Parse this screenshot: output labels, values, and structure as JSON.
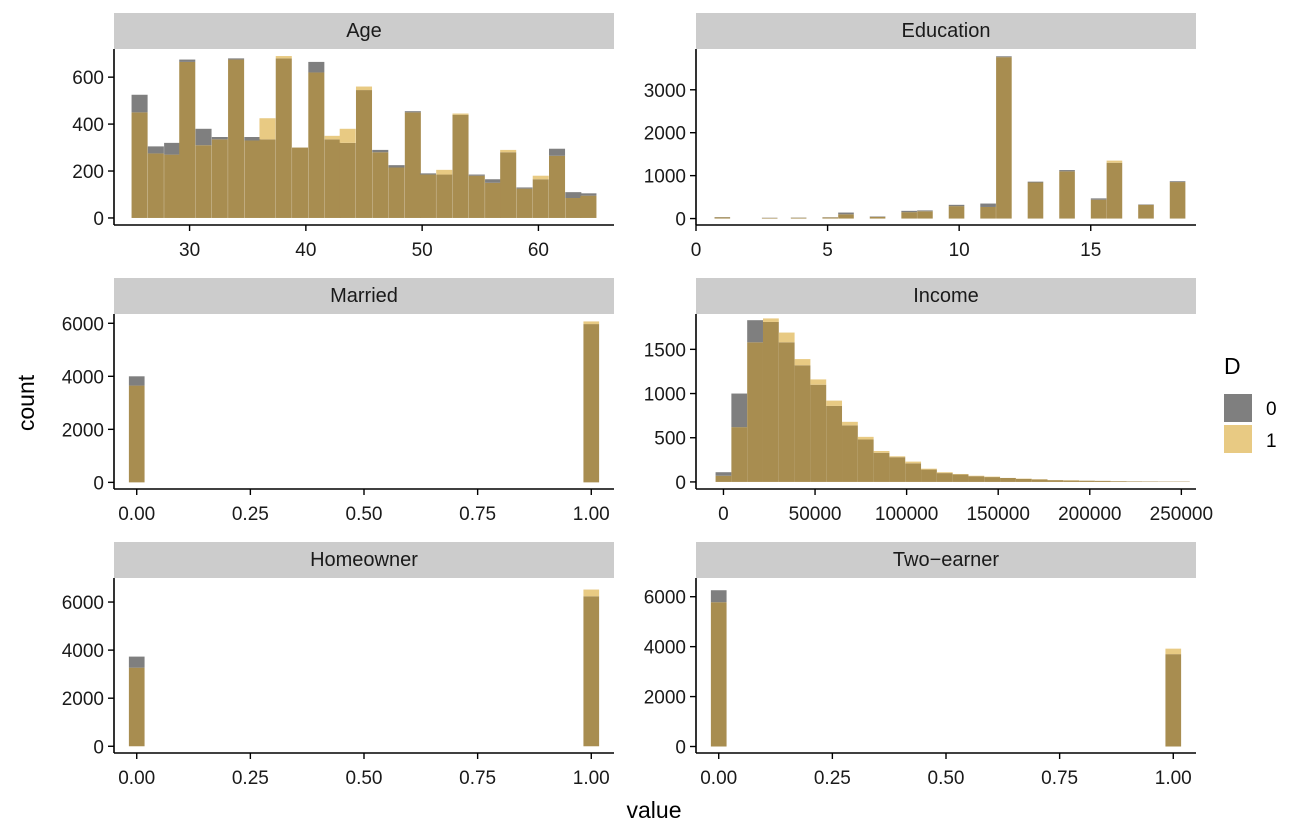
{
  "chart_data": {
    "type": "histogram-facets",
    "xlabel": "value",
    "ylabel": "count",
    "legend": {
      "title": "D",
      "position": "right",
      "entries": [
        {
          "label": "0",
          "color": "#7f7f7f"
        },
        {
          "label": "1",
          "color": "#e8ca83"
        }
      ]
    },
    "overlap_color": "#a88d50",
    "strip_color": "#cccccc",
    "facets": [
      {
        "title": "Age",
        "xlim": [
          23.5,
          66.5
        ],
        "ylim": [
          -30,
          720
        ],
        "xticks": [
          30,
          40,
          50,
          60
        ],
        "xtick_labels": [
          "30",
          "40",
          "50",
          "60"
        ],
        "yticks": [
          0,
          200,
          400,
          600
        ],
        "ytick_labels": [
          "0",
          "200",
          "400",
          "600"
        ],
        "bin_width": 1.38,
        "bin_centers": [
          25.7,
          27.1,
          28.5,
          29.8,
          31.2,
          32.6,
          34.0,
          35.4,
          36.7,
          38.1,
          39.5,
          40.9,
          42.3,
          43.6,
          45.0,
          46.4,
          47.8,
          49.2,
          50.5,
          51.9,
          53.3,
          54.7,
          56.1,
          57.4,
          58.8,
          60.2,
          61.6,
          63.0,
          64.3
        ],
        "series": [
          {
            "name": "0",
            "values": [
              525,
              305,
              320,
              675,
              380,
              345,
              680,
              345,
              335,
              680,
              300,
              665,
              335,
              320,
              545,
              290,
              225,
              455,
              190,
              185,
              440,
              185,
              165,
              280,
              130,
              165,
              295,
              110,
              105
            ]
          },
          {
            "name": "1",
            "values": [
              450,
              275,
              270,
              665,
              310,
              335,
              675,
              330,
              425,
              690,
              300,
              620,
              350,
              380,
              560,
              280,
              215,
              450,
              185,
              205,
              445,
              180,
              150,
              290,
              125,
              180,
              265,
              85,
              95
            ]
          }
        ]
      },
      {
        "title": "Education",
        "xlim": [
          0,
          19
        ],
        "ylim": [
          -150,
          3950
        ],
        "xticks": [
          0,
          5,
          10,
          15
        ],
        "xtick_labels": [
          "0",
          "5",
          "10",
          "15"
        ],
        "yticks": [
          0,
          1000,
          2000,
          3000
        ],
        "ytick_labels": [
          "0",
          "1000",
          "2000",
          "3000"
        ],
        "bin_width": 0.593,
        "bin_centers": [
          1.0,
          2.8,
          3.9,
          5.1,
          5.7,
          6.9,
          8.1,
          8.7,
          9.9,
          11.1,
          11.7,
          12.9,
          14.1,
          15.3,
          15.9,
          17.1,
          18.3
        ],
        "series": [
          {
            "name": "0",
            "values": [
              35,
              20,
              25,
              30,
              140,
              50,
              180,
              190,
              320,
              350,
              3780,
              860,
              1130,
              470,
              1300,
              330,
              870
            ]
          },
          {
            "name": "1",
            "values": [
              30,
              15,
              20,
              25,
              100,
              40,
              150,
              170,
              290,
              270,
              3760,
              840,
              1100,
              440,
              1350,
              320,
              850
            ]
          }
        ]
      },
      {
        "title": "Married",
        "xlim": [
          -0.05,
          1.05
        ],
        "ylim": [
          -250,
          6350
        ],
        "xticks": [
          0,
          0.25,
          0.5,
          0.75,
          1
        ],
        "xtick_labels": [
          "0.00",
          "0.25",
          "0.50",
          "0.75",
          "1.00"
        ],
        "yticks": [
          0,
          2000,
          4000,
          6000
        ],
        "ytick_labels": [
          "0",
          "2000",
          "4000",
          "6000"
        ],
        "bin_width": 0.0345,
        "bin_centers": [
          0,
          1
        ],
        "series": [
          {
            "name": "0",
            "values": [
              4000,
              5970
            ]
          },
          {
            "name": "1",
            "values": [
              3650,
              6070
            ]
          }
        ]
      },
      {
        "title": "Income",
        "xlim": [
          -15000,
          258000
        ],
        "ylim": [
          -80,
          1900
        ],
        "xticks": [
          0,
          50000,
          100000,
          150000,
          200000,
          250000
        ],
        "xtick_labels": [
          "0",
          "50000",
          "100000",
          "150000",
          "200000",
          "250000"
        ],
        "yticks": [
          0,
          500,
          1000,
          1500
        ],
        "ytick_labels": [
          "0",
          "500",
          "1000",
          "1500"
        ],
        "bin_width": 8630,
        "bin_centers": [
          0,
          8630,
          17260,
          25890,
          34520,
          43150,
          51780,
          60410,
          69040,
          77670,
          86300,
          94930,
          103560,
          112190,
          120820,
          129450,
          138080,
          146710,
          155340,
          163970,
          172600,
          181230,
          189860,
          198490,
          207120,
          215750,
          224380,
          233010,
          241640,
          250270
        ],
        "series": [
          {
            "name": "0",
            "values": [
              110,
              1000,
              1830,
              1810,
              1580,
              1320,
              1100,
              860,
              640,
              480,
              330,
              280,
              210,
              140,
              100,
              85,
              65,
              55,
              45,
              35,
              28,
              20,
              16,
              14,
              12,
              8,
              6,
              5,
              4,
              4
            ]
          },
          {
            "name": "1",
            "values": [
              70,
              620,
              1580,
              1850,
              1690,
              1390,
              1160,
              920,
              680,
              510,
              350,
              290,
              230,
              150,
              110,
              90,
              70,
              60,
              45,
              38,
              30,
              20,
              18,
              14,
              12,
              8,
              6,
              5,
              4,
              4
            ]
          }
        ]
      },
      {
        "title": "Homeowner",
        "xlim": [
          -0.05,
          1.05
        ],
        "ylim": [
          -280,
          7000
        ],
        "xticks": [
          0,
          0.25,
          0.5,
          0.75,
          1
        ],
        "xtick_labels": [
          "0.00",
          "0.25",
          "0.50",
          "0.75",
          "1.00"
        ],
        "yticks": [
          0,
          2000,
          4000,
          6000
        ],
        "ytick_labels": [
          "0",
          "2000",
          "4000",
          "6000"
        ],
        "bin_width": 0.0345,
        "bin_centers": [
          0,
          1
        ],
        "series": [
          {
            "name": "0",
            "values": [
              3730,
              6240
            ]
          },
          {
            "name": "1",
            "values": [
              3270,
              6520
            ]
          }
        ]
      },
      {
        "title": "Two−earner",
        "xlim": [
          -0.05,
          1.05
        ],
        "ylim": [
          -260,
          6750
        ],
        "xticks": [
          0,
          0.25,
          0.5,
          0.75,
          1
        ],
        "xtick_labels": [
          "0.00",
          "0.25",
          "0.50",
          "0.75",
          "1.00"
        ],
        "yticks": [
          0,
          2000,
          4000,
          6000
        ],
        "ytick_labels": [
          "0",
          "2000",
          "4000",
          "6000"
        ],
        "bin_width": 0.0345,
        "bin_centers": [
          0,
          1
        ],
        "series": [
          {
            "name": "0",
            "values": [
              6260,
              3700
            ]
          },
          {
            "name": "1",
            "values": [
              5780,
              3920
            ]
          }
        ]
      }
    ]
  }
}
